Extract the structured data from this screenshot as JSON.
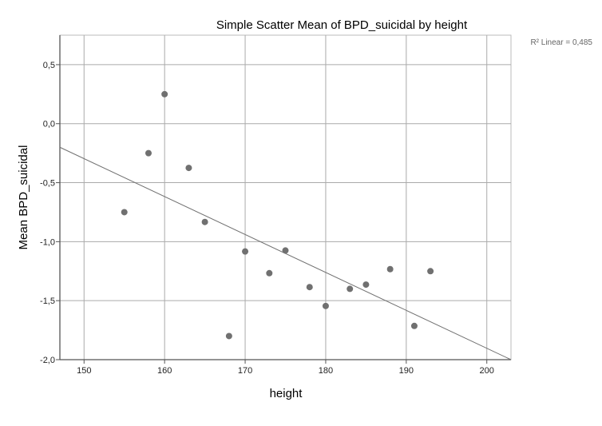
{
  "chart_data": {
    "type": "scatter",
    "title": "Simple Scatter Mean of BPD_suicidal by height",
    "xlabel": "height",
    "ylabel": "Mean BPD_suicidal",
    "xlim": [
      147,
      203
    ],
    "ylim": [
      -2.0,
      0.75
    ],
    "x_ticks": [
      150,
      160,
      170,
      180,
      190,
      200
    ],
    "x_tick_labels": [
      "150",
      "160",
      "170",
      "180",
      "190",
      "200"
    ],
    "y_ticks": [
      0.5,
      0.0,
      -0.5,
      -1.0,
      -1.5,
      -2.0
    ],
    "y_tick_labels": [
      "0,5",
      "0,0",
      "-0,5",
      "-1,0",
      "-1,5",
      "-2,0"
    ],
    "grid": true,
    "points": [
      {
        "x": 155,
        "y": -0.75
      },
      {
        "x": 158,
        "y": -0.25
      },
      {
        "x": 160,
        "y": 0.25
      },
      {
        "x": 163,
        "y": -0.375
      },
      {
        "x": 165,
        "y": -0.833
      },
      {
        "x": 168,
        "y": -1.8
      },
      {
        "x": 170,
        "y": -1.083
      },
      {
        "x": 173,
        "y": -1.267
      },
      {
        "x": 175,
        "y": -1.075
      },
      {
        "x": 178,
        "y": -1.385
      },
      {
        "x": 180,
        "y": -1.545
      },
      {
        "x": 183,
        "y": -1.4
      },
      {
        "x": 185,
        "y": -1.364
      },
      {
        "x": 188,
        "y": -1.233
      },
      {
        "x": 191,
        "y": -1.714
      },
      {
        "x": 193,
        "y": -1.25
      }
    ],
    "fit_line": {
      "type": "linear",
      "x": [
        147,
        203
      ],
      "y": [
        -0.2,
        -2.0
      ],
      "annotation": "R² Linear = 0,485"
    },
    "colors": {
      "point": "#707070",
      "fit_line": "#707070",
      "grid": "#aaaaaa",
      "axis": "#555555"
    }
  }
}
